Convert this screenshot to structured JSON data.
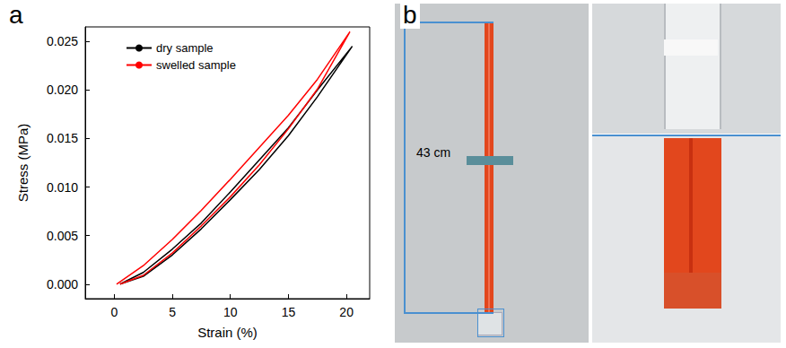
{
  "chart_data": {
    "type": "line",
    "panel_label": "a",
    "x_label": "Strain (%)",
    "y_label": "Stress (MPa)",
    "xlim": [
      -2.5,
      22
    ],
    "ylim": [
      -0.0015,
      0.0265
    ],
    "xticks": [
      0,
      5,
      10,
      15,
      20
    ],
    "yticks": [
      {
        "value": 0,
        "label": "0.000"
      },
      {
        "value": 0.005,
        "label": "0.005"
      },
      {
        "value": 0.01,
        "label": "0.010"
      },
      {
        "value": 0.015,
        "label": "0.015"
      },
      {
        "value": 0.02,
        "label": "0.020"
      },
      {
        "value": 0.025,
        "label": "0.025"
      }
    ],
    "grid": false,
    "legend": "upper left",
    "series": [
      {
        "name": "dry sample",
        "color": "#000000",
        "line_style": "solid",
        "x": [
          0.5,
          2.5,
          5,
          7.5,
          10,
          12.5,
          15,
          17.5,
          20.5,
          17.5,
          15,
          12.5,
          10,
          7.5,
          5,
          2.5,
          0.5
        ],
        "values": [
          0,
          0.0012,
          0.0036,
          0.0063,
          0.0095,
          0.0128,
          0.0161,
          0.02,
          0.0245,
          0.0193,
          0.0153,
          0.0118,
          0.0087,
          0.0057,
          0.003,
          0.0008,
          0
        ]
      },
      {
        "name": "swelled sample",
        "color": "#ff0000",
        "line_style": "solid",
        "x": [
          0.2,
          2.5,
          5,
          7.5,
          10,
          12.5,
          15,
          17.5,
          20.3,
          17.5,
          15,
          12.5,
          10,
          7.5,
          5,
          2.5,
          0.5
        ],
        "values": [
          0,
          0.0019,
          0.0046,
          0.0076,
          0.0108,
          0.0141,
          0.0174,
          0.0211,
          0.026,
          0.0201,
          0.016,
          0.0123,
          0.009,
          0.006,
          0.0032,
          0.0009,
          0
        ]
      }
    ]
  },
  "photo": {
    "panel_label": "b",
    "annotation": "43 cm"
  }
}
